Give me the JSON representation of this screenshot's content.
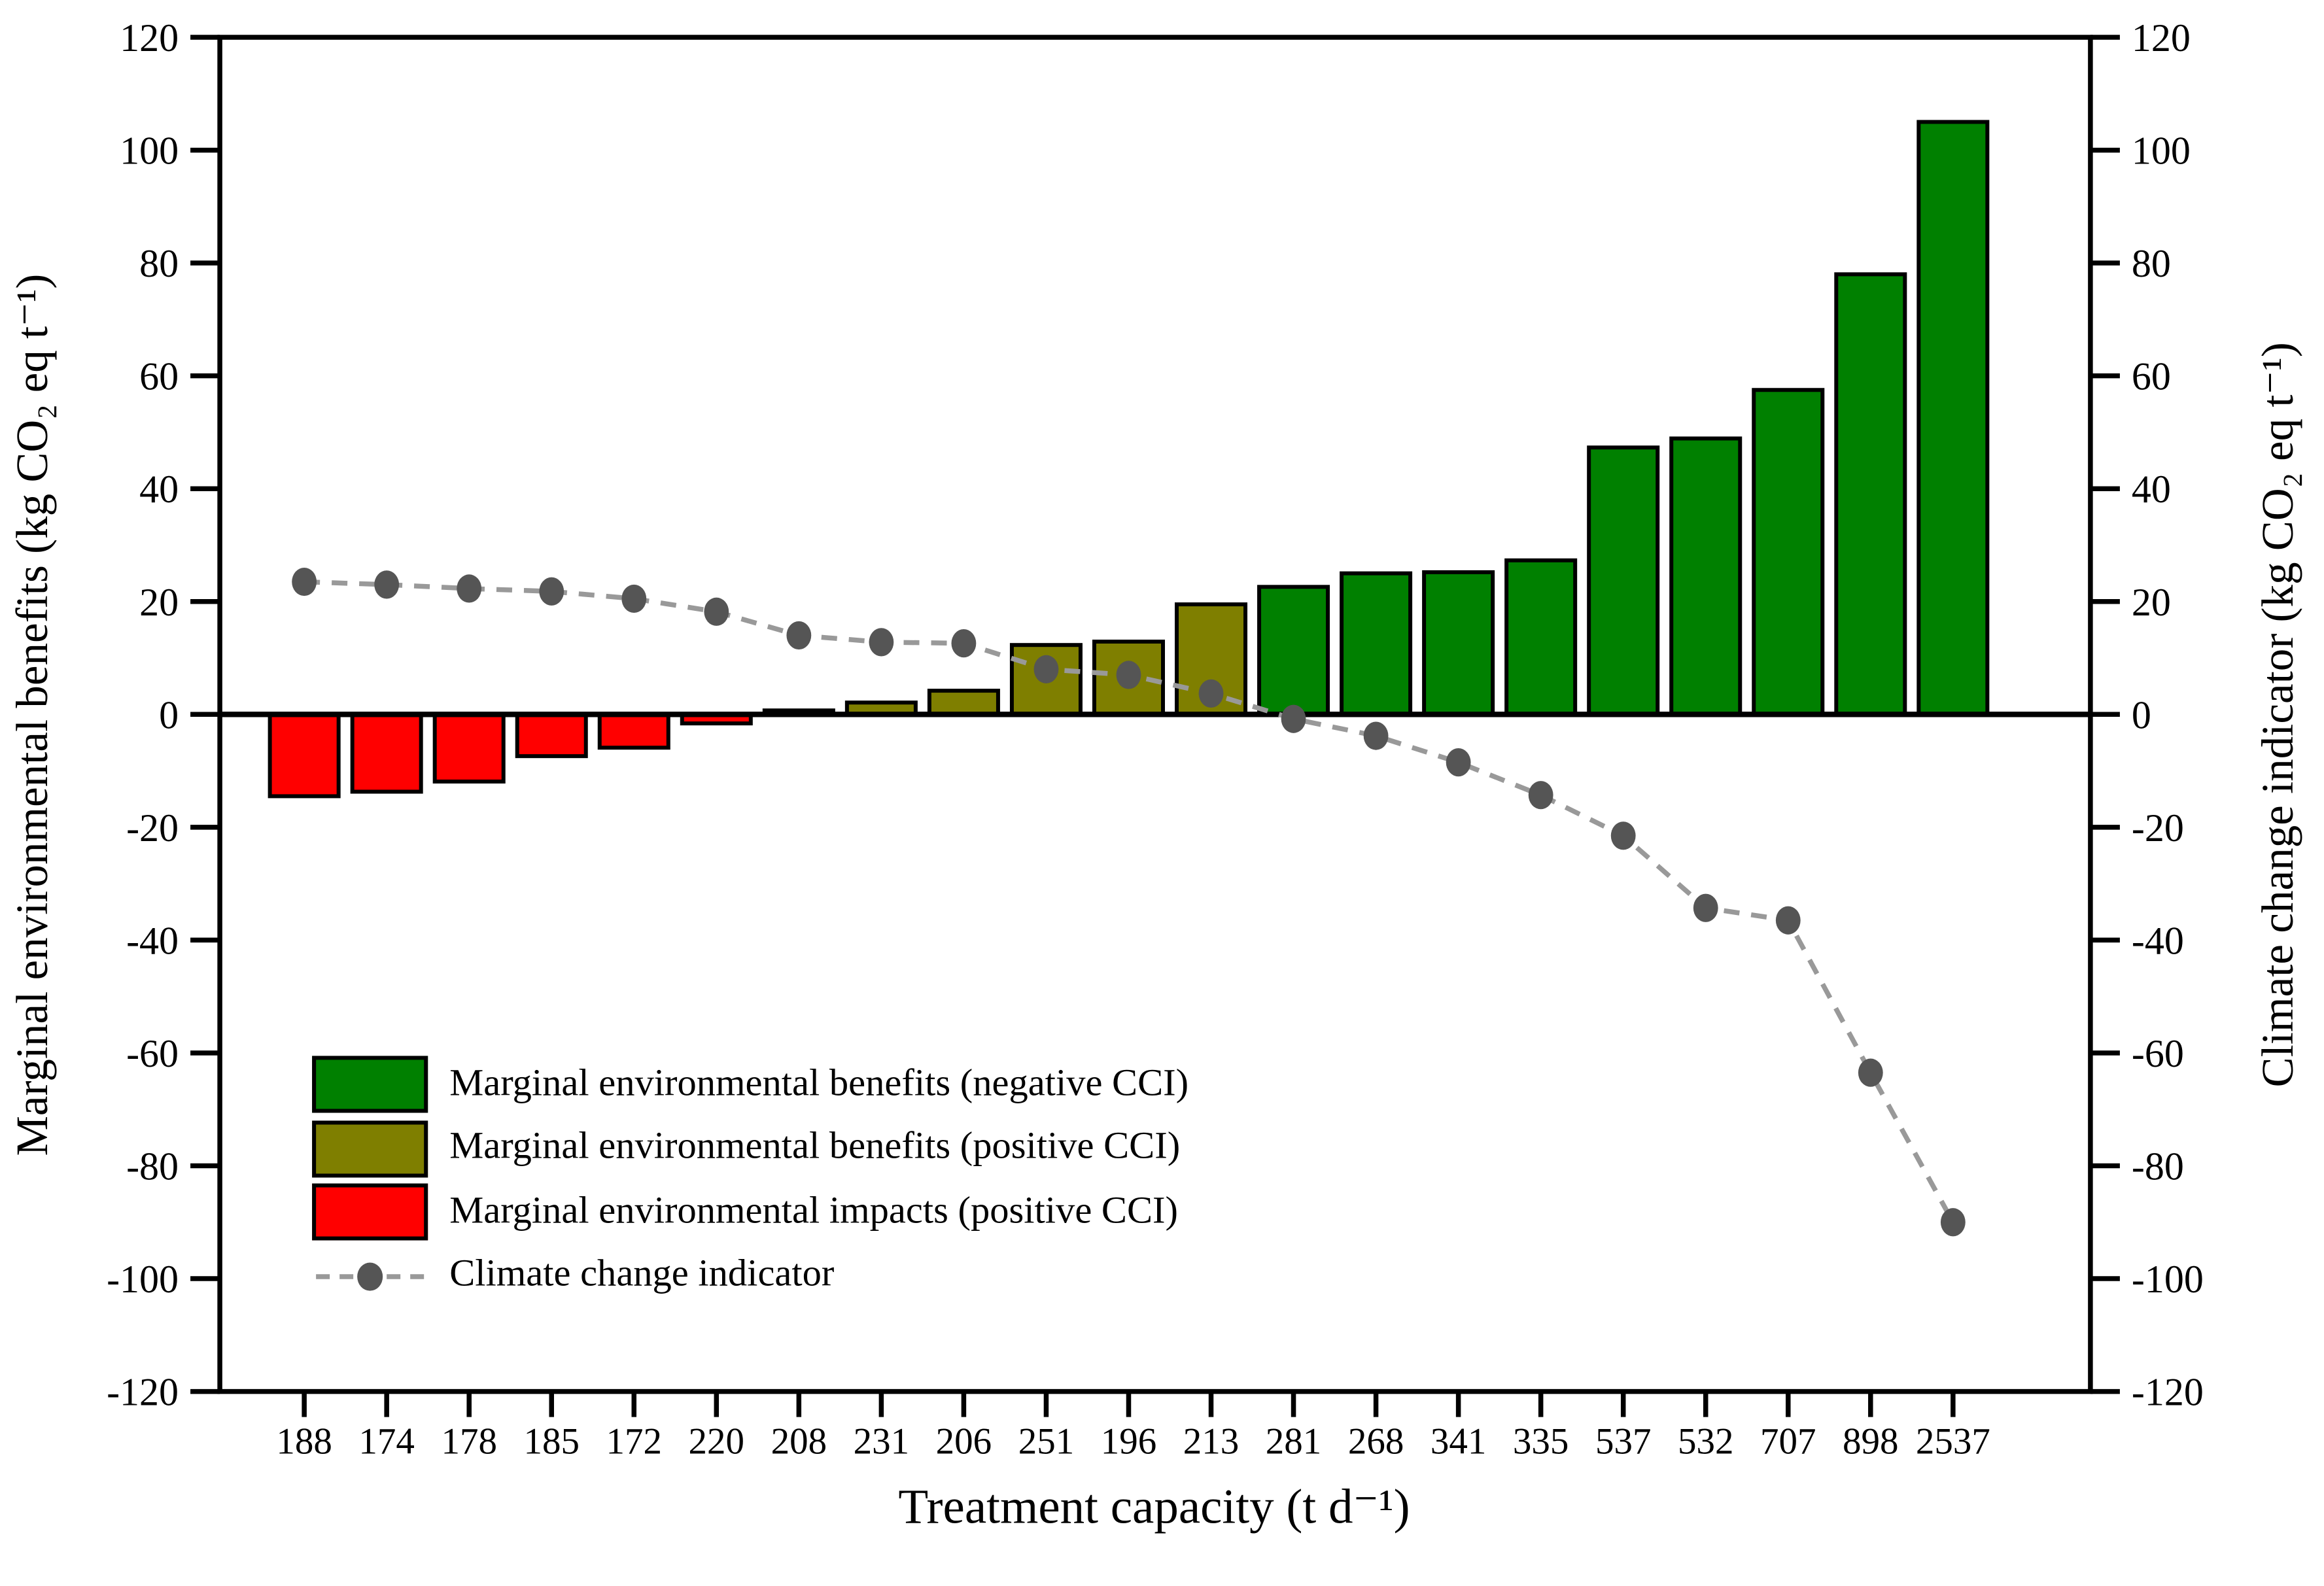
{
  "chart_data": {
    "type": "bar+line",
    "categories": [
      "188",
      "174",
      "178",
      "185",
      "172",
      "220",
      "208",
      "231",
      "206",
      "251",
      "196",
      "213",
      "281",
      "268",
      "341",
      "335",
      "537",
      "532",
      "707",
      "898",
      "2537"
    ],
    "series": [
      {
        "name": "Marginal environmental benefits/impacts",
        "type": "bar",
        "values": [
          -14.5,
          -13.7,
          -11.9,
          -7.4,
          -5.9,
          -1.6,
          0.7,
          2.1,
          4.2,
          12.3,
          12.9,
          19.5,
          22.6,
          25.0,
          25.2,
          27.3,
          47.3,
          48.9,
          57.5,
          78,
          105
        ],
        "classes": [
          "impact_positive_cci",
          "impact_positive_cci",
          "impact_positive_cci",
          "impact_positive_cci",
          "impact_positive_cci",
          "impact_positive_cci",
          "benefit_positive_cci",
          "benefit_positive_cci",
          "benefit_positive_cci",
          "benefit_positive_cci",
          "benefit_positive_cci",
          "benefit_positive_cci",
          "benefit_negative_cci",
          "benefit_negative_cci",
          "benefit_negative_cci",
          "benefit_negative_cci",
          "benefit_negative_cci",
          "benefit_negative_cci",
          "benefit_negative_cci",
          "benefit_negative_cci",
          "benefit_negative_cci"
        ]
      },
      {
        "name": "Climate change indicator",
        "type": "line",
        "values": [
          23.5,
          23,
          22.3,
          21.8,
          20.5,
          18.2,
          14,
          12.8,
          12.6,
          8,
          7,
          3.7,
          -0.8,
          -3.8,
          -8.5,
          -14.3,
          -21.5,
          -34.3,
          -36.5,
          -63.5,
          -90
        ]
      }
    ],
    "ylabel_left": "Marginal environmental benefits (kg CO₂ eq t⁻¹)",
    "ylabel_right": "Climate change indicator (kg CO₂ eq t⁻¹)",
    "xlabel": "Treatment capacity (t d⁻¹)",
    "ylim": [
      -120,
      120
    ],
    "ytick_step": 20,
    "yticks": [
      120,
      100,
      80,
      60,
      40,
      20,
      0,
      -20,
      -40,
      -60,
      -80,
      -100,
      -120
    ],
    "grid": "off",
    "legend_position": "inside lower-left",
    "colors": {
      "benefit_negative_cci": "#008000",
      "benefit_positive_cci": "#7f7f00",
      "impact_positive_cci": "#ff0000",
      "cci_line": "#999999",
      "cci_marker": "#555555",
      "axis": "#000000"
    },
    "legend": [
      {
        "label": "Marginal environmental benefits (negative CCI)",
        "swatch": "benefit_negative_cci"
      },
      {
        "label": "Marginal environmental benefits (positive CCI)",
        "swatch": "benefit_positive_cci"
      },
      {
        "label": "Marginal environmental impacts (positive CCI)",
        "swatch": "impact_positive_cci"
      },
      {
        "label": "Climate change indicator",
        "swatch": "cci_line"
      }
    ]
  }
}
